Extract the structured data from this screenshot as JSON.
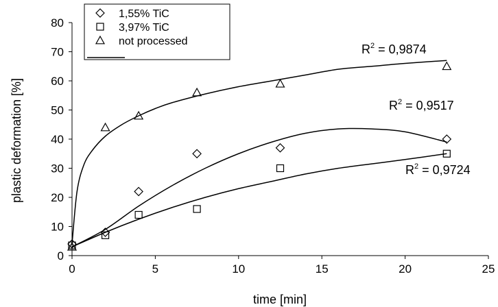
{
  "chart_data": {
    "type": "scatter",
    "title": "",
    "xlabel": "time [min]",
    "ylabel": "plastic deformation [%]",
    "xlim": [
      0,
      25
    ],
    "ylim": [
      0,
      80
    ],
    "xticks": [
      0,
      5,
      10,
      15,
      20,
      25
    ],
    "yticks": [
      0,
      10,
      20,
      30,
      40,
      50,
      60,
      70,
      80
    ],
    "grid": false,
    "legend_position": "top-left",
    "series": [
      {
        "name": "1,55% TiC",
        "marker": "diamond",
        "points": [
          [
            0,
            4
          ],
          [
            2,
            8
          ],
          [
            4,
            22
          ],
          [
            7.5,
            35
          ],
          [
            12.5,
            37
          ],
          [
            22.5,
            40
          ]
        ],
        "trendline": [
          [
            0,
            3
          ],
          [
            2,
            9
          ],
          [
            4,
            17
          ],
          [
            6,
            24
          ],
          [
            8,
            30
          ],
          [
            10,
            35
          ],
          [
            12,
            39
          ],
          [
            14,
            42
          ],
          [
            16,
            43.5
          ],
          [
            18,
            43.5
          ],
          [
            20,
            42.5
          ],
          [
            22.5,
            39
          ]
        ],
        "r2_label": "0,9517"
      },
      {
        "name": "3,97% TiC",
        "marker": "square",
        "points": [
          [
            0,
            3.5
          ],
          [
            2,
            7
          ],
          [
            4,
            14
          ],
          [
            7.5,
            16
          ],
          [
            12.5,
            30
          ],
          [
            22.5,
            35
          ]
        ],
        "trendline": [
          [
            0,
            3
          ],
          [
            2,
            8
          ],
          [
            4,
            12.5
          ],
          [
            6,
            16.5
          ],
          [
            8,
            20
          ],
          [
            10,
            23
          ],
          [
            12,
            25.5
          ],
          [
            14,
            28
          ],
          [
            16,
            30
          ],
          [
            18,
            31.5
          ],
          [
            20,
            33
          ],
          [
            22.5,
            35
          ]
        ],
        "r2_label": "0,9724"
      },
      {
        "name": "not processed",
        "marker": "triangle",
        "points": [
          [
            0,
            3
          ],
          [
            2,
            44
          ],
          [
            4,
            48
          ],
          [
            7.5,
            56
          ],
          [
            12.5,
            59
          ],
          [
            22.5,
            65
          ]
        ],
        "trendline": [
          [
            0,
            4
          ],
          [
            0.3,
            22
          ],
          [
            0.7,
            31
          ],
          [
            1.2,
            36
          ],
          [
            2,
            41
          ],
          [
            3,
            45
          ],
          [
            4,
            48
          ],
          [
            5,
            50.5
          ],
          [
            6,
            52.5
          ],
          [
            8,
            55.5
          ],
          [
            10,
            58
          ],
          [
            12,
            60
          ],
          [
            14,
            62
          ],
          [
            16,
            64
          ],
          [
            18,
            65
          ],
          [
            20,
            66
          ],
          [
            22.5,
            67
          ]
        ],
        "r2_label": "0,9874"
      }
    ],
    "annotations": [
      {
        "series": "not processed",
        "text_prefix": "R",
        "superscript": "2",
        "text_value": " = 0,9874"
      },
      {
        "series": "1,55% TiC",
        "text_prefix": "R",
        "superscript": "2",
        "text_value": " = 0,9517"
      },
      {
        "series": "3,97% TiC",
        "text_prefix": "R",
        "superscript": "2",
        "text_value": " = 0,9724"
      }
    ]
  }
}
